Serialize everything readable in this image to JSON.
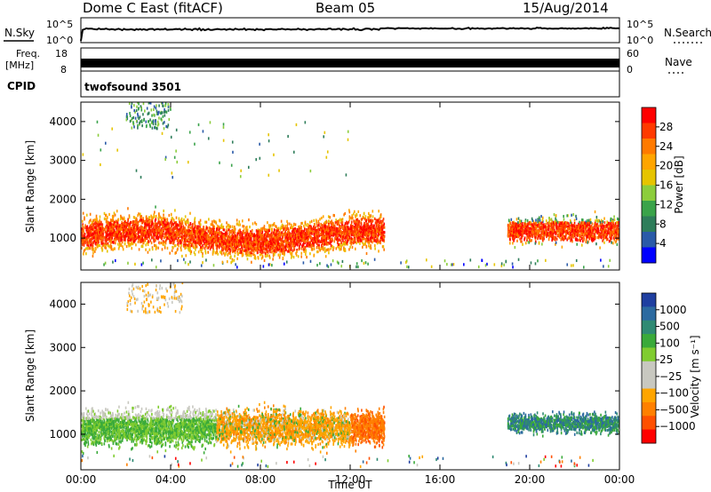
{
  "header": {
    "title": "Dome C East (fitACF)",
    "beam": "Beam 05",
    "date": "15/Aug/2014"
  },
  "top_panels": {
    "nsky_label": "N.Sky",
    "nsky_ticks": [
      "10^5",
      "10^0"
    ],
    "nsearch_label": "N.Search",
    "nsearch_ticks": [
      "10^5",
      "10^0"
    ],
    "freq_label": "Freq.",
    "freq_unit": "[MHz]",
    "freq_ticks": [
      "18",
      "8"
    ],
    "nave_label": "Nave",
    "nave_ticks": [
      "60",
      "0"
    ],
    "cpid_label": "CPID",
    "cpid_value": "twofsound 3501"
  },
  "chart_data": [
    {
      "type": "heatmap",
      "title": "",
      "xlabel": "",
      "ylabel": "Slant Range [km]",
      "yticks": [
        "4000",
        "3000",
        "2000",
        "1000"
      ],
      "ylim": [
        180,
        4500
      ],
      "xlim": [
        "00:00",
        "24:00"
      ],
      "colorbar": {
        "label": "Power [dB]",
        "ticks": [
          "28",
          "24",
          "20",
          "16",
          "12",
          "8",
          "4"
        ],
        "colors": [
          "#ff0000",
          "#ff3a00",
          "#ff7a00",
          "#ffa500",
          "#e6c400",
          "#8ccd3c",
          "#3aa34a",
          "#2e7d5a",
          "#2a5aa8",
          "#0000ff"
        ]
      },
      "scatter_regions": [
        {
          "x": [
            "00:00",
            "13:30"
          ],
          "y": [
            500,
            2400
          ],
          "value": "4-28 dB, mostly 20-28 near 800-1400 km"
        },
        {
          "x": [
            "19:00",
            "24:00"
          ],
          "y": [
            700,
            1900
          ],
          "value": "8-28 dB"
        },
        {
          "x": [
            "02:00",
            "04:00"
          ],
          "y": [
            3800,
            4500
          ],
          "value": "8-16 dB"
        }
      ]
    },
    {
      "type": "heatmap",
      "title": "",
      "xlabel": "Time UT",
      "ylabel": "Slant Range [km]",
      "xticks": [
        "00:00",
        "04:00",
        "08:00",
        "12:00",
        "16:00",
        "20:00",
        "00:00"
      ],
      "yticks": [
        "4000",
        "3000",
        "2000",
        "1000"
      ],
      "ylim": [
        180,
        4500
      ],
      "xlim": [
        "00:00",
        "24:00"
      ],
      "colorbar": {
        "label": "Velocity [m s⁻¹]",
        "ticks": [
          "1000",
          "500",
          "100",
          "25",
          "−25",
          "−100",
          "−500",
          "−1000"
        ],
        "colors": [
          "#1f3fa0",
          "#2c6aa0",
          "#2f8a73",
          "#3aaa3a",
          "#80cc30",
          "#c8c8c0",
          "#c8c8c0",
          "#ffa500",
          "#ff8000",
          "#ff5000",
          "#ff0000"
        ]
      },
      "scatter_regions": [
        {
          "x": [
            "00:00",
            "06:00"
          ],
          "y": [
            500,
            2000
          ],
          "value": "green 25-100 near 800-1300 km, grey above"
        },
        {
          "x": [
            "06:00",
            "12:00"
          ],
          "y": [
            600,
            2200
          ],
          "value": "orange -25 to -100, some green"
        },
        {
          "x": [
            "12:00",
            "13:30"
          ],
          "y": [
            500,
            1900
          ],
          "value": "orange -100 to -500"
        },
        {
          "x": [
            "19:00",
            "24:00"
          ],
          "y": [
            700,
            1700
          ],
          "value": "green/teal 100-500"
        }
      ]
    }
  ]
}
